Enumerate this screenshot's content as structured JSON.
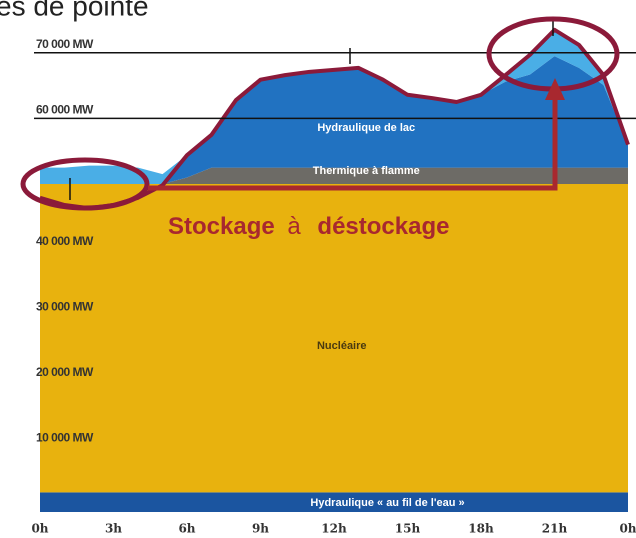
{
  "chart_data": {
    "type": "area",
    "title": "es de pointe",
    "x": [
      0,
      1,
      2,
      3,
      4,
      5,
      6,
      7,
      8,
      9,
      10,
      11,
      12,
      13,
      14,
      15,
      16,
      17,
      18,
      19,
      20,
      21,
      22,
      23,
      24
    ],
    "xlim": [
      0,
      24
    ],
    "xticks": [
      {
        "value": 0,
        "label": "0h"
      },
      {
        "value": 3,
        "label": "3h"
      },
      {
        "value": 6,
        "label": "6h"
      },
      {
        "value": 9,
        "label": "9h"
      },
      {
        "value": 12,
        "label": "12h"
      },
      {
        "value": 15,
        "label": "15h"
      },
      {
        "value": 18,
        "label": "18h"
      },
      {
        "value": 21,
        "label": "21h"
      },
      {
        "value": 24,
        "label": "0h"
      }
    ],
    "ylim": [
      0,
      75000
    ],
    "yticks": [
      {
        "value": 10000,
        "label": "10 000 MW"
      },
      {
        "value": 20000,
        "label": "20 000 MW"
      },
      {
        "value": 30000,
        "label": "30 000 MW"
      },
      {
        "value": 40000,
        "label": "40 000 MW"
      },
      {
        "value": 60000,
        "label": "60 000 MW"
      },
      {
        "value": 70000,
        "label": "70 000 MW"
      }
    ],
    "grid_lines": [
      60000,
      70000
    ],
    "series": [
      {
        "name": "Hydraulique « au fil de l'eau »",
        "color": "#1b55a0",
        "values": [
          3000,
          3000,
          3000,
          3000,
          3000,
          3000,
          3000,
          3000,
          3000,
          3000,
          3000,
          3000,
          3000,
          3000,
          3000,
          3000,
          3000,
          3000,
          3000,
          3000,
          3000,
          3000,
          3000,
          3000,
          3000
        ]
      },
      {
        "name": "Nucléaire",
        "color": "#e8b20e",
        "values": [
          47000,
          47000,
          47000,
          47000,
          47000,
          47000,
          47000,
          47000,
          47000,
          47000,
          47000,
          47000,
          47000,
          47000,
          47000,
          47000,
          47000,
          47000,
          47000,
          47000,
          47000,
          47000,
          47000,
          47000,
          47000
        ]
      },
      {
        "name": "Thermique à flamme",
        "color": "#6d6b66",
        "values": [
          0,
          0,
          0,
          0,
          0,
          0,
          1000,
          2500,
          2500,
          2500,
          2500,
          2500,
          2500,
          2500,
          2500,
          2500,
          2500,
          2500,
          2500,
          2500,
          2500,
          2500,
          2500,
          2500,
          2500
        ]
      },
      {
        "name": "Hydraulique de lac",
        "color": "#2172c1",
        "values": [
          0,
          0,
          0,
          0,
          0,
          0,
          3400,
          5000,
          10300,
          13400,
          14100,
          14600,
          14900,
          15200,
          13400,
          11100,
          10600,
          10000,
          11100,
          13100,
          14200,
          17000,
          15200,
          12600,
          3500
        ]
      },
      {
        "color": "#4aaee6",
        "values": [
          2500,
          2500,
          2800,
          2800,
          2500,
          1500,
          0,
          0,
          0,
          0,
          0,
          0,
          0,
          0,
          0,
          0,
          0,
          0,
          0,
          1000,
          3000,
          4000,
          3500,
          1500,
          0
        ]
      },
      {
        "color": "#8b1a3a",
        "line": true,
        "values": [
          47900,
          46800,
          46300,
          46800,
          47900,
          49800,
          54400,
          57500,
          62800,
          65900,
          66600,
          67100,
          67400,
          67700,
          65900,
          63600,
          63100,
          62500,
          63600,
          66600,
          69700,
          73500,
          71200,
          66600,
          56000
        ]
      }
    ],
    "annotation": [
      "Stockage",
      "à",
      "déstockage"
    ]
  }
}
